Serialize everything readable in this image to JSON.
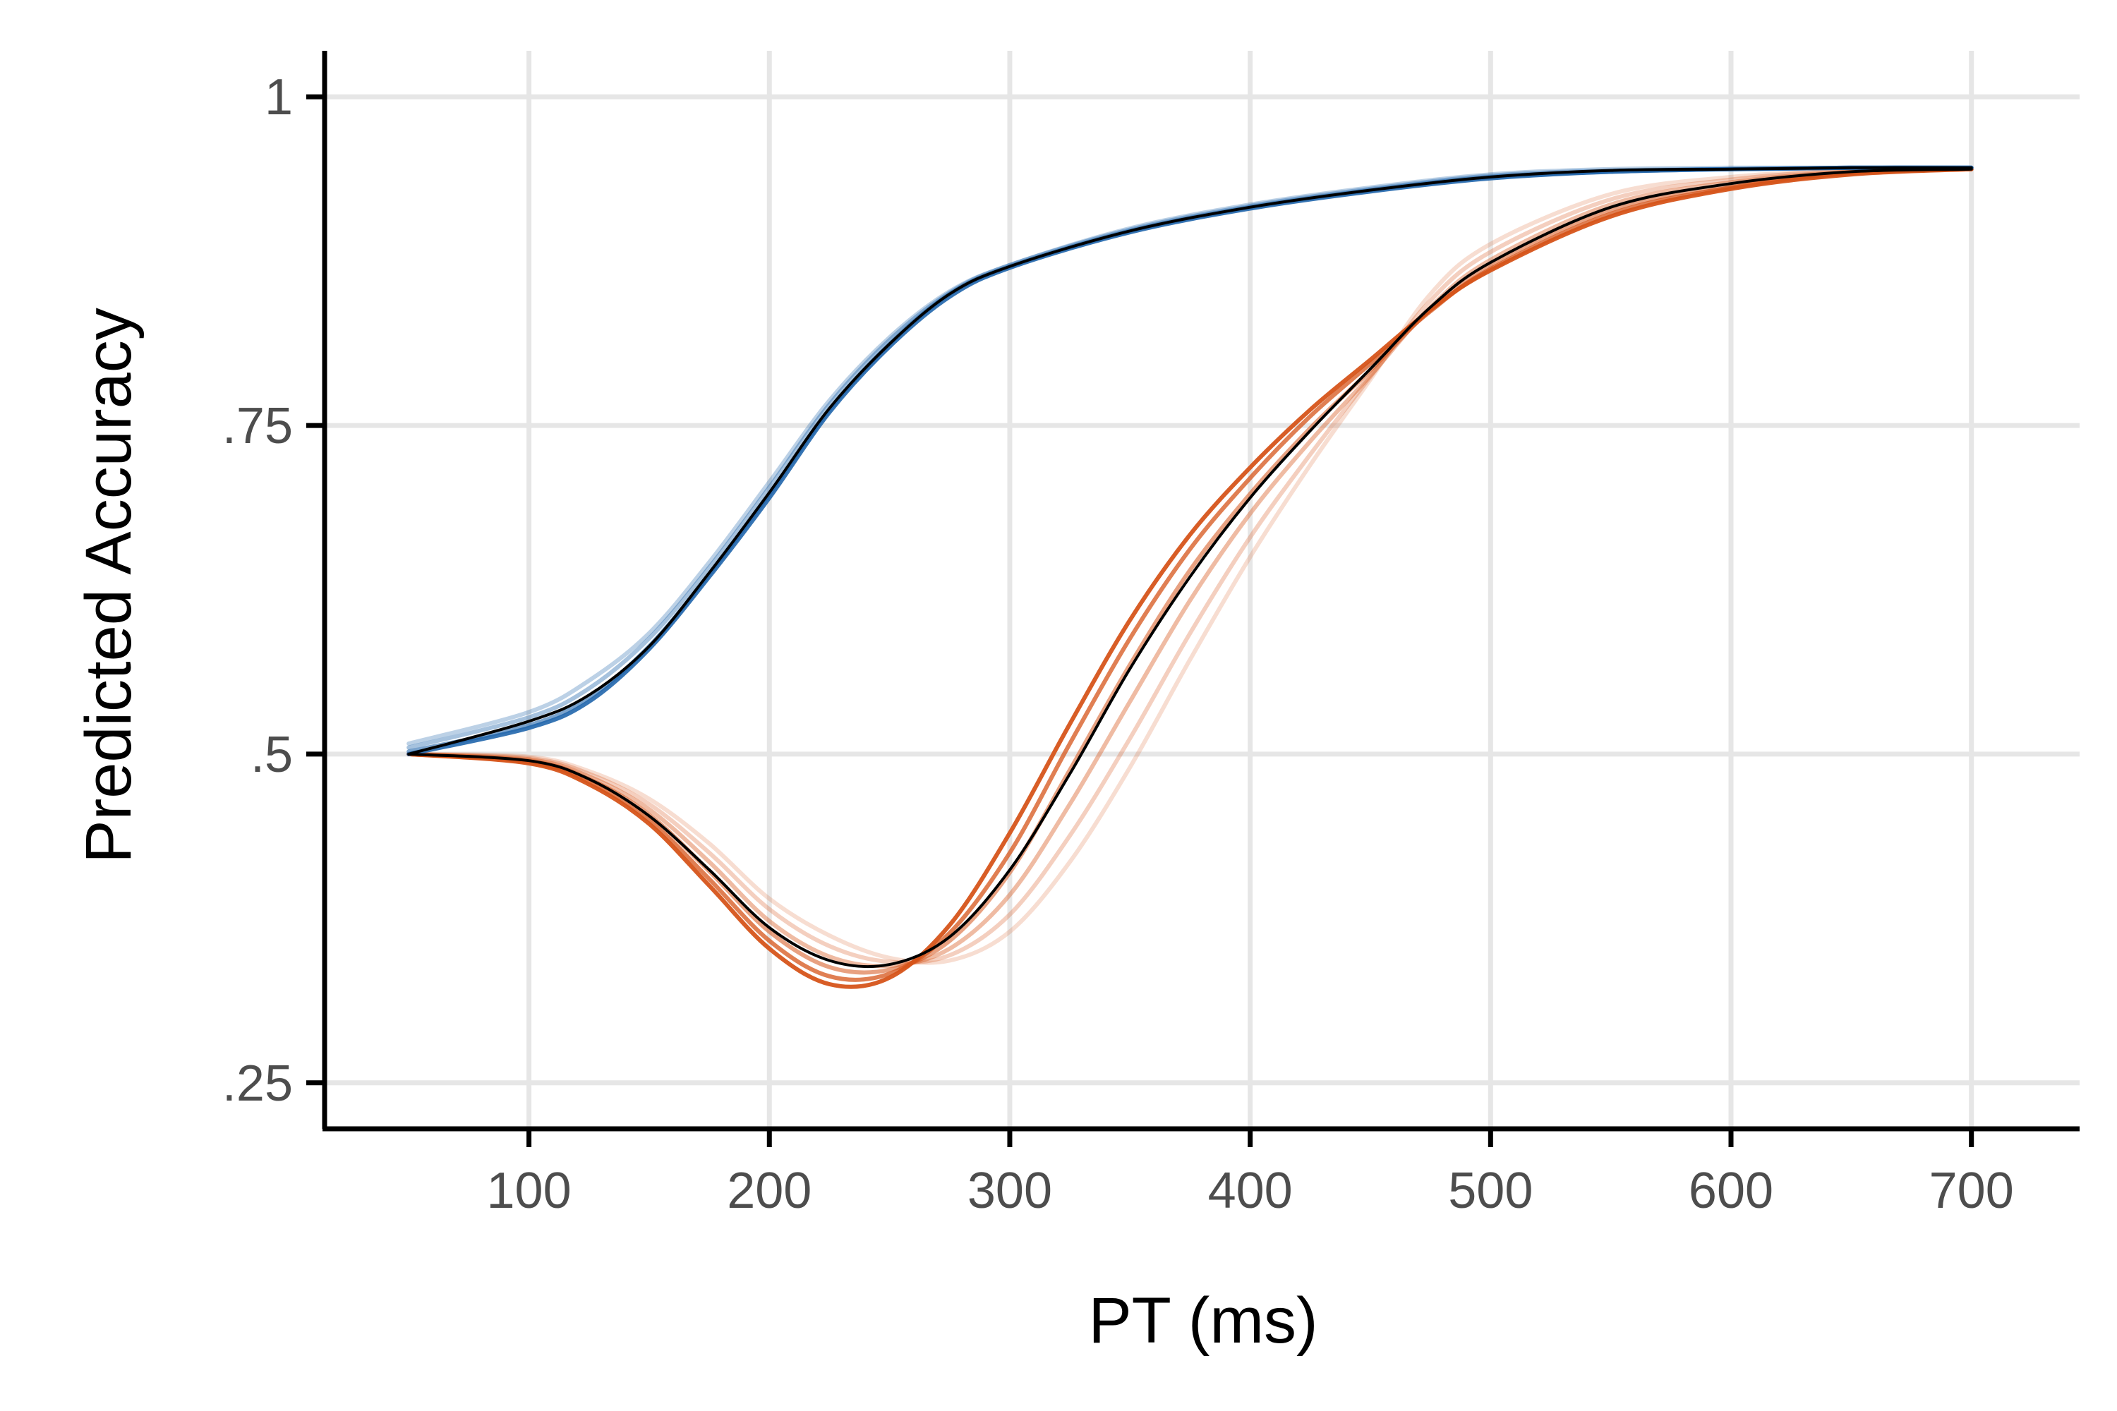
{
  "chart_data": {
    "type": "line",
    "title": "",
    "xlabel": "PT (ms)",
    "ylabel": "Predicted Accuracy",
    "xlim": [
      15,
      745
    ],
    "ylim": [
      0.215,
      1.035
    ],
    "x_ticks": [
      {
        "value": 100,
        "label": "100"
      },
      {
        "value": 200,
        "label": "200"
      },
      {
        "value": 300,
        "label": "300"
      },
      {
        "value": 400,
        "label": "400"
      },
      {
        "value": 500,
        "label": "500"
      },
      {
        "value": 600,
        "label": "600"
      },
      {
        "value": 700,
        "label": "700"
      }
    ],
    "y_ticks": [
      {
        "value": 0.25,
        "label": ".25"
      },
      {
        "value": 0.5,
        "label": ".5"
      },
      {
        "value": 0.75,
        "label": ".75"
      },
      {
        "value": 1.0,
        "label": "1"
      }
    ],
    "grid": true,
    "legend": "none",
    "colors": {
      "blue_group": "#2166ac",
      "orange_group": "#d6541a",
      "mean_line": "#000000",
      "grid": "#e6e6e6",
      "axis": "#000000"
    },
    "series": [
      {
        "group": "blue",
        "opacity": 0.9,
        "x": [
          50,
          100,
          125,
          150,
          175,
          200,
          225,
          250,
          275,
          300,
          350,
          400,
          450,
          500,
          550,
          600,
          650,
          700
        ],
        "y": [
          0.5,
          0.52,
          0.54,
          0.58,
          0.635,
          0.695,
          0.76,
          0.81,
          0.848,
          0.87,
          0.897,
          0.915,
          0.928,
          0.938,
          0.943,
          0.945,
          0.946,
          0.946
        ]
      },
      {
        "group": "blue",
        "opacity": 0.6,
        "x": [
          50,
          100,
          125,
          150,
          175,
          200,
          225,
          250,
          275,
          300,
          350,
          400,
          450,
          500,
          550,
          600,
          650,
          700
        ],
        "y": [
          0.502,
          0.522,
          0.543,
          0.582,
          0.637,
          0.698,
          0.762,
          0.812,
          0.85,
          0.871,
          0.898,
          0.916,
          0.929,
          0.939,
          0.943,
          0.945,
          0.946,
          0.946
        ]
      },
      {
        "group": "blue",
        "opacity": 0.4,
        "x": [
          50,
          100,
          125,
          150,
          175,
          200,
          225,
          250,
          275,
          300,
          350,
          400,
          450,
          500,
          550,
          600,
          650,
          700
        ],
        "y": [
          0.505,
          0.528,
          0.55,
          0.588,
          0.642,
          0.703,
          0.766,
          0.815,
          0.851,
          0.872,
          0.899,
          0.917,
          0.93,
          0.94,
          0.944,
          0.945,
          0.946,
          0.946
        ]
      },
      {
        "group": "blue",
        "opacity": 0.3,
        "x": [
          50,
          100,
          125,
          150,
          175,
          200,
          225,
          250,
          275,
          300,
          350,
          400,
          450,
          500,
          550,
          600,
          650,
          700
        ],
        "y": [
          0.508,
          0.532,
          0.556,
          0.592,
          0.646,
          0.707,
          0.769,
          0.817,
          0.852,
          0.872,
          0.9,
          0.918,
          0.931,
          0.941,
          0.945,
          0.946,
          0.946,
          0.946
        ]
      },
      {
        "group": "orange",
        "opacity": 0.95,
        "x": [
          50,
          100,
          125,
          150,
          175,
          200,
          225,
          250,
          275,
          300,
          325,
          350,
          375,
          400,
          425,
          450,
          475,
          500,
          550,
          600,
          650,
          700
        ],
        "y": [
          0.5,
          0.493,
          0.477,
          0.447,
          0.4,
          0.352,
          0.325,
          0.33,
          0.37,
          0.44,
          0.523,
          0.602,
          0.667,
          0.718,
          0.762,
          0.8,
          0.838,
          0.868,
          0.909,
          0.93,
          0.941,
          0.945
        ]
      },
      {
        "group": "orange",
        "opacity": 0.75,
        "x": [
          50,
          100,
          125,
          150,
          175,
          200,
          225,
          250,
          275,
          300,
          325,
          350,
          375,
          400,
          425,
          450,
          475,
          500,
          550,
          600,
          650,
          700
        ],
        "y": [
          0.5,
          0.494,
          0.479,
          0.45,
          0.405,
          0.358,
          0.331,
          0.333,
          0.364,
          0.425,
          0.508,
          0.588,
          0.656,
          0.71,
          0.757,
          0.797,
          0.837,
          0.869,
          0.911,
          0.931,
          0.942,
          0.945
        ]
      },
      {
        "group": "orange",
        "opacity": 0.55,
        "x": [
          50,
          100,
          125,
          150,
          175,
          200,
          225,
          250,
          275,
          300,
          325,
          350,
          375,
          400,
          425,
          450,
          475,
          500,
          550,
          600,
          650,
          700
        ],
        "y": [
          0.5,
          0.495,
          0.481,
          0.454,
          0.411,
          0.365,
          0.338,
          0.336,
          0.358,
          0.41,
          0.488,
          0.568,
          0.64,
          0.698,
          0.748,
          0.792,
          0.838,
          0.872,
          0.914,
          0.933,
          0.942,
          0.945
        ]
      },
      {
        "group": "orange",
        "opacity": 0.4,
        "x": [
          50,
          100,
          125,
          150,
          175,
          200,
          225,
          250,
          275,
          300,
          325,
          350,
          375,
          400,
          425,
          450,
          475,
          500,
          550,
          600,
          650,
          700
        ],
        "y": [
          0.5,
          0.496,
          0.483,
          0.458,
          0.418,
          0.373,
          0.346,
          0.339,
          0.352,
          0.393,
          0.462,
          0.54,
          0.617,
          0.683,
          0.738,
          0.788,
          0.84,
          0.876,
          0.918,
          0.935,
          0.943,
          0.945
        ]
      },
      {
        "group": "orange",
        "opacity": 0.28,
        "x": [
          50,
          100,
          125,
          150,
          175,
          200,
          225,
          250,
          275,
          300,
          325,
          350,
          375,
          400,
          425,
          450,
          475,
          500,
          550,
          600,
          650,
          700
        ],
        "y": [
          0.5,
          0.497,
          0.485,
          0.462,
          0.425,
          0.382,
          0.354,
          0.342,
          0.347,
          0.378,
          0.438,
          0.512,
          0.592,
          0.665,
          0.728,
          0.787,
          0.845,
          0.882,
          0.922,
          0.937,
          0.944,
          0.945
        ]
      },
      {
        "group": "orange",
        "opacity": 0.2,
        "x": [
          50,
          100,
          125,
          150,
          175,
          200,
          225,
          250,
          275,
          300,
          325,
          350,
          375,
          400,
          425,
          450,
          475,
          500,
          550,
          600,
          650,
          700
        ],
        "y": [
          0.5,
          0.498,
          0.487,
          0.466,
          0.432,
          0.39,
          0.362,
          0.345,
          0.343,
          0.365,
          0.418,
          0.49,
          0.572,
          0.65,
          0.72,
          0.785,
          0.85,
          0.888,
          0.926,
          0.939,
          0.944,
          0.945
        ]
      },
      {
        "group": "mean",
        "opacity": 1,
        "x": [
          50,
          100,
          125,
          150,
          175,
          200,
          225,
          250,
          275,
          300,
          350,
          400,
          450,
          500,
          550,
          600,
          650,
          700
        ],
        "y": [
          0.5,
          0.525,
          0.545,
          0.582,
          0.638,
          0.699,
          0.763,
          0.812,
          0.85,
          0.871,
          0.898,
          0.916,
          0.929,
          0.939,
          0.944,
          0.945,
          0.946,
          0.946
        ]
      },
      {
        "group": "mean",
        "opacity": 1,
        "x": [
          50,
          100,
          125,
          150,
          175,
          200,
          225,
          250,
          275,
          300,
          325,
          350,
          375,
          400,
          425,
          450,
          475,
          500,
          550,
          600,
          650,
          700
        ],
        "y": [
          0.5,
          0.495,
          0.481,
          0.453,
          0.412,
          0.368,
          0.343,
          0.34,
          0.361,
          0.412,
          0.485,
          0.565,
          0.635,
          0.695,
          0.746,
          0.793,
          0.84,
          0.874,
          0.916,
          0.934,
          0.943,
          0.945
        ]
      }
    ]
  }
}
